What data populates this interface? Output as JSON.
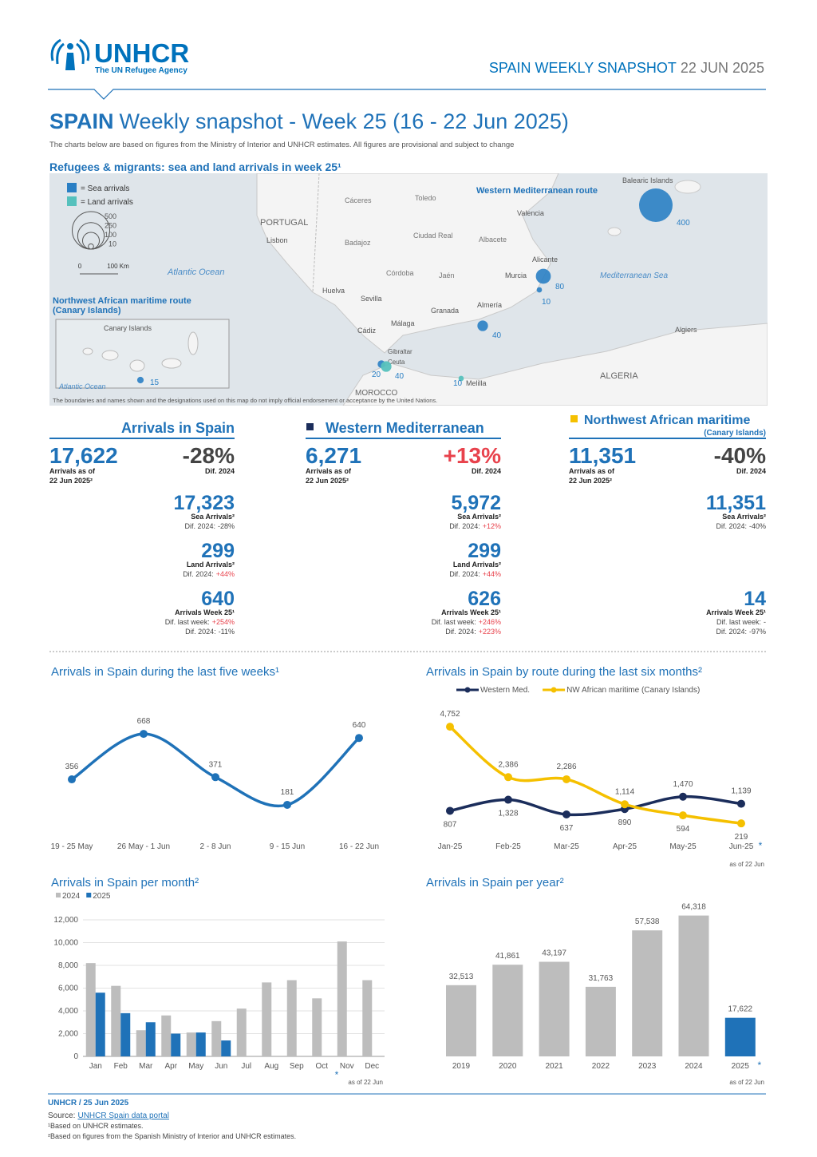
{
  "header": {
    "org": "UNHCR",
    "tagline": "The UN Refugee Agency",
    "snapshot_country": "SPAIN",
    "snapshot_label": "WEEKLY SNAPSHOT",
    "snapshot_date": "22 JUN 2025"
  },
  "title": {
    "country": "SPAIN",
    "text": "Weekly snapshot - Week 25 (16 - 22 Jun 2025)",
    "subtitle": "The charts below are based on figures from the Ministry of Interior and UNHCR estimates. All figures are provisional and subject to change"
  },
  "map": {
    "title": "Refugees & migrants: sea and land arrivals in week 25¹",
    "legend": {
      "sea": "= Sea arrivals",
      "land": "= Land arrivals",
      "sizes": [
        500,
        250,
        100,
        10
      ],
      "scale_zero": "0",
      "scale": "100 Km"
    },
    "labels": [
      "Western Mediterranean route",
      "Northwest African maritime route",
      "(Canary Islands)",
      "PORTUGAL",
      "ALGERIA",
      "MOROCCO",
      "Atlantic Ocean",
      "Mediterranean Sea",
      "Balearic Islands",
      "Atlantic Ocean",
      "Canary Islands",
      "Lisbon",
      "Cáceres",
      "Toledo",
      "Badajoz",
      "Ciudad Real",
      "Valencia",
      "Albacete",
      "Alicante",
      "Córdoba",
      "Jaén",
      "Murcia",
      "Huelva",
      "Sevilla",
      "Granada",
      "Almería",
      "Cádiz",
      "Málaga",
      "Gibraltar",
      "Ceuta",
      "Melilla",
      "Algiers"
    ],
    "sea_arrivals": [
      400,
      80,
      10,
      40,
      20,
      15
    ],
    "land_arrivals": [
      40,
      10
    ],
    "disclaimer": "The boundaries and names shown and the designations used on this map do not imply official endorsement or acceptance by the United Nations."
  },
  "kpis": [
    {
      "title": "Arrivals in Spain",
      "total": "17,622",
      "total_label": [
        "Arrivals as of",
        "22 Jun 2025²"
      ],
      "diff": "-28%",
      "diff_label": "Dif. 2024",
      "items": [
        {
          "value": "17,323",
          "label": "Sea Arrivals²",
          "diffs": [
            {
              "label": "Dif. 2024:",
              "value": "-28%"
            }
          ]
        },
        {
          "value": "299",
          "label": "Land Arrivals²",
          "diffs": [
            {
              "label": "Dif. 2024:",
              "value": "+44%"
            }
          ]
        },
        {
          "value": "640",
          "label": "Arrivals Week 25¹",
          "diffs": [
            {
              "label": "Dif. last week:",
              "value": "+254%"
            },
            {
              "label": "Dif. 2024:",
              "value": "-11%"
            }
          ]
        }
      ]
    },
    {
      "title": "Western Mediterranean",
      "total": "6,271",
      "total_label": [
        "Arrivals as of",
        "22 Jun 2025²"
      ],
      "diff": "+13%",
      "diff_label": "Dif. 2024",
      "items": [
        {
          "value": "5,972",
          "label": "Sea Arrivals²",
          "diffs": [
            {
              "label": "Dif. 2024:",
              "value": "+12%"
            }
          ]
        },
        {
          "value": "299",
          "label": "Land Arrivals²",
          "diffs": [
            {
              "label": "Dif. 2024:",
              "value": "+44%"
            }
          ]
        },
        {
          "value": "626",
          "label": "Arrivals Week 25¹",
          "diffs": [
            {
              "label": "Dif. last week:",
              "value": "+246%"
            },
            {
              "label": "Dif. 2024:",
              "value": "+223%"
            }
          ]
        }
      ]
    },
    {
      "title": "Northwest African maritime",
      "subtitle": "(Canary Islands)",
      "total": "11,351",
      "total_label": [
        "Arrivals as of",
        "22 Jun 2025²"
      ],
      "diff": "-40%",
      "diff_label": "Dif. 2024",
      "items": [
        {
          "value": "11,351",
          "label": "Sea Arrivals²",
          "diffs": [
            {
              "label": "Dif. 2024:",
              "value": "-40%"
            }
          ]
        },
        {
          "value": "14",
          "label": "Arrivals Week 25¹",
          "diffs": [
            {
              "label": "Dif. last week:",
              "value": "-"
            },
            {
              "label": "Dif. 2024:",
              "value": "-97%"
            }
          ]
        }
      ]
    }
  ],
  "chart_data": [
    {
      "type": "line",
      "title": "Arrivals in Spain during the last five weeks¹",
      "categories": [
        "19 - 25 May",
        "26 May - 1 Jun",
        "2 - 8 Jun",
        "9 - 15 Jun",
        "16 - 22 Jun"
      ],
      "values": [
        356,
        668,
        371,
        181,
        640
      ],
      "color": "#1f72b8",
      "ylim": [
        0,
        800
      ]
    },
    {
      "type": "line",
      "title": "Arrivals in Spain by route during the last six months²",
      "categories": [
        "Jan-25",
        "Feb-25",
        "Mar-25",
        "Apr-25",
        "May-25",
        "Jun-25"
      ],
      "series": [
        {
          "name": "Western Med.",
          "color": "#1b2d5b",
          "values": [
            807,
            1328,
            637,
            890,
            1470,
            1139
          ],
          "value_labels": [
            "807",
            "1,328",
            "637",
            "890",
            "1,470",
            "1,139"
          ]
        },
        {
          "name": "NW African maritime (Canary Islands)",
          "color": "#f5c000",
          "values": [
            4752,
            2386,
            2286,
            1114,
            594,
            219
          ],
          "value_labels": [
            "4,752",
            "2,386",
            "2,286",
            "1,114",
            "594",
            "219"
          ]
        }
      ],
      "ylim": [
        0,
        5000
      ],
      "note_marker": "*",
      "note": "as of 22 Jun"
    },
    {
      "type": "bar",
      "title": "Arrivals in Spain per month²",
      "categories": [
        "Jan",
        "Feb",
        "Mar",
        "Apr",
        "May",
        "Jun",
        "Jul",
        "Aug",
        "Sep",
        "Oct",
        "Nov",
        "Dec"
      ],
      "series": [
        {
          "name": "2024",
          "color": "#bdbdbd",
          "values": [
            8200,
            6200,
            2300,
            3600,
            2100,
            3100,
            4200,
            6500,
            6700,
            5100,
            10100,
            6700
          ]
        },
        {
          "name": "2025",
          "color": "#1f72b8",
          "values": [
            5600,
            3800,
            3000,
            2000,
            2100,
            1400,
            null,
            null,
            null,
            null,
            null,
            null
          ]
        }
      ],
      "ylim": [
        0,
        12000
      ],
      "yticks": [
        0,
        {
          "value": 2000,
          "label": "2,000"
        },
        {
          "value": 4000,
          "label": "4,000"
        },
        {
          "value": 6000,
          "label": "6,000"
        },
        {
          "value": 8000,
          "label": "8,000"
        },
        {
          "value": 10000,
          "label": "10,000"
        },
        {
          "value": 12000,
          "label": "12,000"
        }
      ],
      "grid": true,
      "note_marker": "*",
      "note": "as of 22 Jun"
    },
    {
      "type": "bar",
      "title": "Arrivals in Spain per year²",
      "categories": [
        "2019",
        "2020",
        "2021",
        "2022",
        "2023",
        "2024",
        "2025"
      ],
      "values": [
        32513,
        41861,
        43197,
        31763,
        57538,
        64318,
        17622
      ],
      "value_labels": [
        "32,513",
        "41,861",
        "43,197",
        "31,763",
        "57,538",
        "64,318",
        "17,622"
      ],
      "colors": [
        "#bdbdbd",
        "#bdbdbd",
        "#bdbdbd",
        "#bdbdbd",
        "#bdbdbd",
        "#bdbdbd",
        "#1f72b8"
      ],
      "ylim": [
        0,
        70000
      ],
      "note_marker": "*",
      "note": "as of 22 Jun"
    }
  ],
  "footer": {
    "credit": "UNHCR / 25 Jun 2025",
    "source_label": "Source:",
    "source_link": "UNHCR Spain data portal",
    "notes": [
      "¹Based on UNHCR estimates.",
      "²Based on figures from the Spanish Ministry of Interior and UNHCR estimates."
    ]
  }
}
